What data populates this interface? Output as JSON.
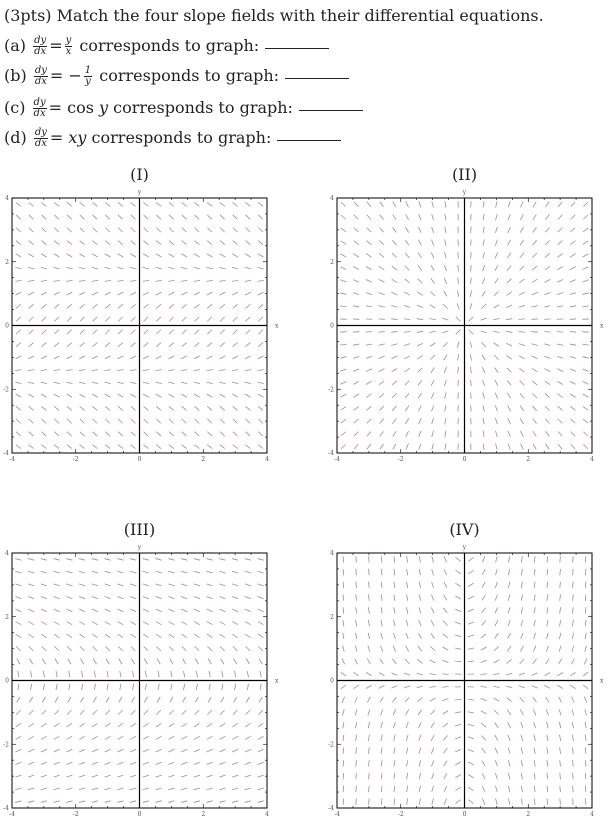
{
  "header": "(3pts) Match the four slope fields with their differential equations.",
  "questions": [
    {
      "label": "(a)",
      "num": "dy",
      "den": "dx",
      "rhs_prefix": "=",
      "rhs_frac_num": "y",
      "rhs_frac_den": "x",
      "rhs_suffix": "",
      "text": "corresponds to graph:"
    },
    {
      "label": "(b)",
      "num": "dy",
      "den": "dx",
      "rhs_prefix": "= −",
      "rhs_frac_num": "1",
      "rhs_frac_den": "y",
      "rhs_suffix": "",
      "text": "corresponds to graph:"
    },
    {
      "label": "(c)",
      "num": "dy",
      "den": "dx",
      "rhs_prefix": "= cos ",
      "rhs_frac_num": "",
      "rhs_frac_den": "",
      "rhs_suffix": "y",
      "text": "corresponds to graph:"
    },
    {
      "label": "(d)",
      "num": "dy",
      "den": "dx",
      "rhs_prefix": "= ",
      "rhs_frac_num": "",
      "rhs_frac_den": "",
      "rhs_suffix": "xy",
      "text": "corresponds to graph:"
    }
  ],
  "colors": {
    "segment": "#a88890",
    "axis": "#000000"
  },
  "chart_data": [
    {
      "type": "slope-field",
      "title": "(I)",
      "slope": "cos(y)",
      "xlabel": "x",
      "ylabel": "y",
      "xlim": [
        -4,
        4
      ],
      "ylim": [
        -4,
        4
      ],
      "xticks": [
        "-4",
        "-2",
        "0",
        "2",
        "4"
      ],
      "yticks": [
        "-4",
        "-2",
        "0",
        "2",
        "4"
      ]
    },
    {
      "type": "slope-field",
      "title": "(II)",
      "slope": "y/x",
      "xlabel": "x",
      "ylabel": "y",
      "xlim": [
        -4,
        4
      ],
      "ylim": [
        -4,
        4
      ],
      "xticks": [
        "-4",
        "-2",
        "0",
        "2",
        "4"
      ],
      "yticks": [
        "-4",
        "-2",
        "0",
        "2",
        "4"
      ]
    },
    {
      "type": "slope-field",
      "title": "(III)",
      "slope": "-1/y",
      "xlabel": "x",
      "ylabel": "y",
      "xlim": [
        -4,
        4
      ],
      "ylim": [
        -4,
        4
      ],
      "xticks": [
        "-4",
        "-2",
        "0",
        "2",
        "4"
      ],
      "yticks": [
        "-4",
        "-2",
        "0",
        "2",
        "4"
      ]
    },
    {
      "type": "slope-field",
      "title": "(IV)",
      "slope": "x*y",
      "xlabel": "x",
      "ylabel": "y",
      "xlim": [
        -4,
        4
      ],
      "ylim": [
        -4,
        4
      ],
      "xticks": [
        "-4",
        "-2",
        "0",
        "2",
        "4"
      ],
      "yticks": [
        "-4",
        "-2",
        "0",
        "2",
        "4"
      ]
    }
  ]
}
